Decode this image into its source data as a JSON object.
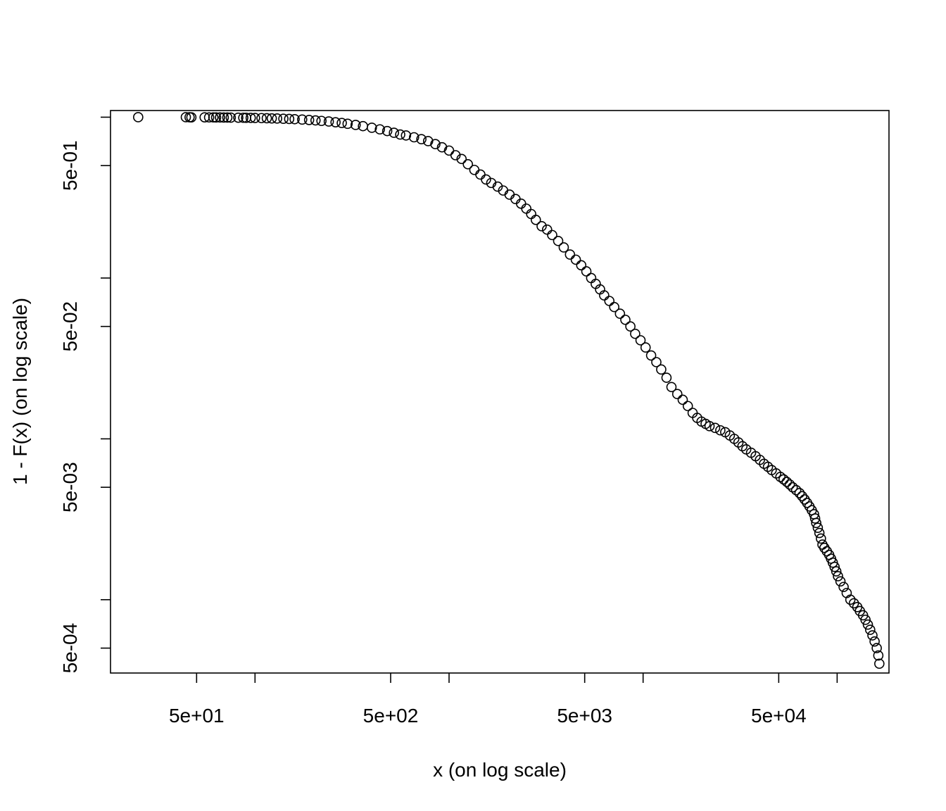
{
  "chart_data": {
    "type": "scatter",
    "title": "",
    "xlabel": "x (on log scale)",
    "ylabel": "1 - F(x) (on log scale)",
    "x_scale": "log",
    "y_scale": "log",
    "xlim": [
      18,
      185000
    ],
    "ylim": [
      0.00035,
      1.1
    ],
    "grid": false,
    "legend": "none",
    "x_ticks": [
      {
        "value": 50,
        "label": "5e+01"
      },
      {
        "value": 100,
        "label": ""
      },
      {
        "value": 500,
        "label": "5e+02"
      },
      {
        "value": 1000,
        "label": ""
      },
      {
        "value": 5000,
        "label": "5e+03"
      },
      {
        "value": 10000,
        "label": ""
      },
      {
        "value": 50000,
        "label": "5e+04"
      },
      {
        "value": 100000,
        "label": ""
      }
    ],
    "y_ticks": [
      {
        "value": 0.0005,
        "label": "5e-04"
      },
      {
        "value": 0.001,
        "label": ""
      },
      {
        "value": 0.005,
        "label": "5e-03"
      },
      {
        "value": 0.01,
        "label": ""
      },
      {
        "value": 0.05,
        "label": "5e-02"
      },
      {
        "value": 0.1,
        "label": ""
      },
      {
        "value": 0.5,
        "label": "5e-01"
      },
      {
        "value": 1,
        "label": ""
      }
    ],
    "series": [
      {
        "points": [
          [
            25,
            1.0
          ],
          [
            44,
            1.0
          ],
          [
            46,
            0.999
          ],
          [
            47,
            0.998
          ],
          [
            55,
            0.998
          ],
          [
            58,
            0.997
          ],
          [
            61,
            0.997
          ],
          [
            63,
            0.996
          ],
          [
            66,
            0.996
          ],
          [
            69,
            0.995
          ],
          [
            72,
            0.995
          ],
          [
            75,
            0.994
          ],
          [
            82,
            0.993
          ],
          [
            87,
            0.992
          ],
          [
            90,
            0.991
          ],
          [
            95,
            0.99
          ],
          [
            100,
            0.989
          ],
          [
            108,
            0.987
          ],
          [
            115,
            0.985
          ],
          [
            122,
            0.983
          ],
          [
            130,
            0.981
          ],
          [
            140,
            0.978
          ],
          [
            150,
            0.975
          ],
          [
            160,
            0.972
          ],
          [
            175,
            0.967
          ],
          [
            190,
            0.961
          ],
          [
            205,
            0.955
          ],
          [
            220,
            0.948
          ],
          [
            240,
            0.94
          ],
          [
            260,
            0.93
          ],
          [
            280,
            0.92
          ],
          [
            300,
            0.91
          ],
          [
            330,
            0.895
          ],
          [
            360,
            0.88
          ],
          [
            400,
            0.86
          ],
          [
            440,
            0.84
          ],
          [
            480,
            0.82
          ],
          [
            520,
            0.8
          ],
          [
            560,
            0.78
          ],
          [
            600,
            0.77
          ],
          [
            660,
            0.75
          ],
          [
            720,
            0.73
          ],
          [
            780,
            0.71
          ],
          [
            850,
            0.68
          ],
          [
            920,
            0.65
          ],
          [
            1000,
            0.62
          ],
          [
            1080,
            0.58
          ],
          [
            1160,
            0.55
          ],
          [
            1250,
            0.51
          ],
          [
            1350,
            0.47
          ],
          [
            1450,
            0.44
          ],
          [
            1550,
            0.41
          ],
          [
            1650,
            0.39
          ],
          [
            1780,
            0.37
          ],
          [
            1900,
            0.35
          ],
          [
            2050,
            0.33
          ],
          [
            2200,
            0.31
          ],
          [
            2350,
            0.29
          ],
          [
            2500,
            0.27
          ],
          [
            2650,
            0.25
          ],
          [
            2800,
            0.23
          ],
          [
            3000,
            0.21
          ],
          [
            3200,
            0.2
          ],
          [
            3400,
            0.185
          ],
          [
            3650,
            0.17
          ],
          [
            3900,
            0.155
          ],
          [
            4200,
            0.14
          ],
          [
            4500,
            0.13
          ],
          [
            4800,
            0.12
          ],
          [
            5100,
            0.11
          ],
          [
            5400,
            0.1
          ],
          [
            5700,
            0.092
          ],
          [
            6000,
            0.085
          ],
          [
            6300,
            0.078
          ],
          [
            6700,
            0.072
          ],
          [
            7100,
            0.066
          ],
          [
            7600,
            0.06
          ],
          [
            8100,
            0.055
          ],
          [
            8600,
            0.05
          ],
          [
            9100,
            0.045
          ],
          [
            9700,
            0.041
          ],
          [
            10300,
            0.037
          ],
          [
            11000,
            0.033
          ],
          [
            11700,
            0.03
          ],
          [
            12400,
            0.027
          ],
          [
            13200,
            0.024
          ],
          [
            14000,
            0.021
          ],
          [
            15000,
            0.019
          ],
          [
            16000,
            0.0175
          ],
          [
            17000,
            0.016
          ],
          [
            18000,
            0.0145
          ],
          [
            19000,
            0.0135
          ],
          [
            20000,
            0.0128
          ],
          [
            21000,
            0.0124
          ],
          [
            22000,
            0.012
          ],
          [
            23500,
            0.0117
          ],
          [
            25000,
            0.0113
          ],
          [
            26500,
            0.011
          ],
          [
            28000,
            0.0105
          ],
          [
            29500,
            0.01
          ],
          [
            31000,
            0.0095
          ],
          [
            32500,
            0.009
          ],
          [
            34000,
            0.0086
          ],
          [
            36000,
            0.0082
          ],
          [
            38000,
            0.0078
          ],
          [
            40000,
            0.0074
          ],
          [
            42000,
            0.007
          ],
          [
            44000,
            0.0067
          ],
          [
            46000,
            0.0064
          ],
          [
            48500,
            0.0061
          ],
          [
            51000,
            0.0058
          ],
          [
            53000,
            0.0056
          ],
          [
            55000,
            0.0054
          ],
          [
            57000,
            0.0052
          ],
          [
            59000,
            0.005
          ],
          [
            61500,
            0.0048
          ],
          [
            64000,
            0.0046
          ],
          [
            66000,
            0.0044
          ],
          [
            68000,
            0.0042
          ],
          [
            70000,
            0.004
          ],
          [
            72000,
            0.0038
          ],
          [
            74000,
            0.0036
          ],
          [
            76000,
            0.0034
          ],
          [
            77000,
            0.0032
          ],
          [
            78000,
            0.003
          ],
          [
            79500,
            0.0028
          ],
          [
            81000,
            0.0026
          ],
          [
            82500,
            0.0024
          ],
          [
            84000,
            0.0022
          ],
          [
            86000,
            0.0021
          ],
          [
            88500,
            0.002
          ],
          [
            91000,
            0.0019
          ],
          [
            93000,
            0.0018
          ],
          [
            95000,
            0.0017
          ],
          [
            97000,
            0.0016
          ],
          [
            99000,
            0.0015
          ],
          [
            101000,
            0.0014
          ],
          [
            104000,
            0.0013
          ],
          [
            108000,
            0.0012
          ],
          [
            112000,
            0.0011
          ],
          [
            117000,
            0.001
          ],
          [
            122000,
            0.00095
          ],
          [
            127000,
            0.0009
          ],
          [
            131000,
            0.00085
          ],
          [
            136000,
            0.0008
          ],
          [
            140000,
            0.00075
          ],
          [
            144000,
            0.0007
          ],
          [
            148000,
            0.00065
          ],
          [
            152000,
            0.0006
          ],
          [
            156000,
            0.00055
          ],
          [
            160000,
            0.0005
          ],
          [
            163000,
            0.00045
          ],
          [
            165000,
            0.0004
          ]
        ]
      }
    ]
  }
}
